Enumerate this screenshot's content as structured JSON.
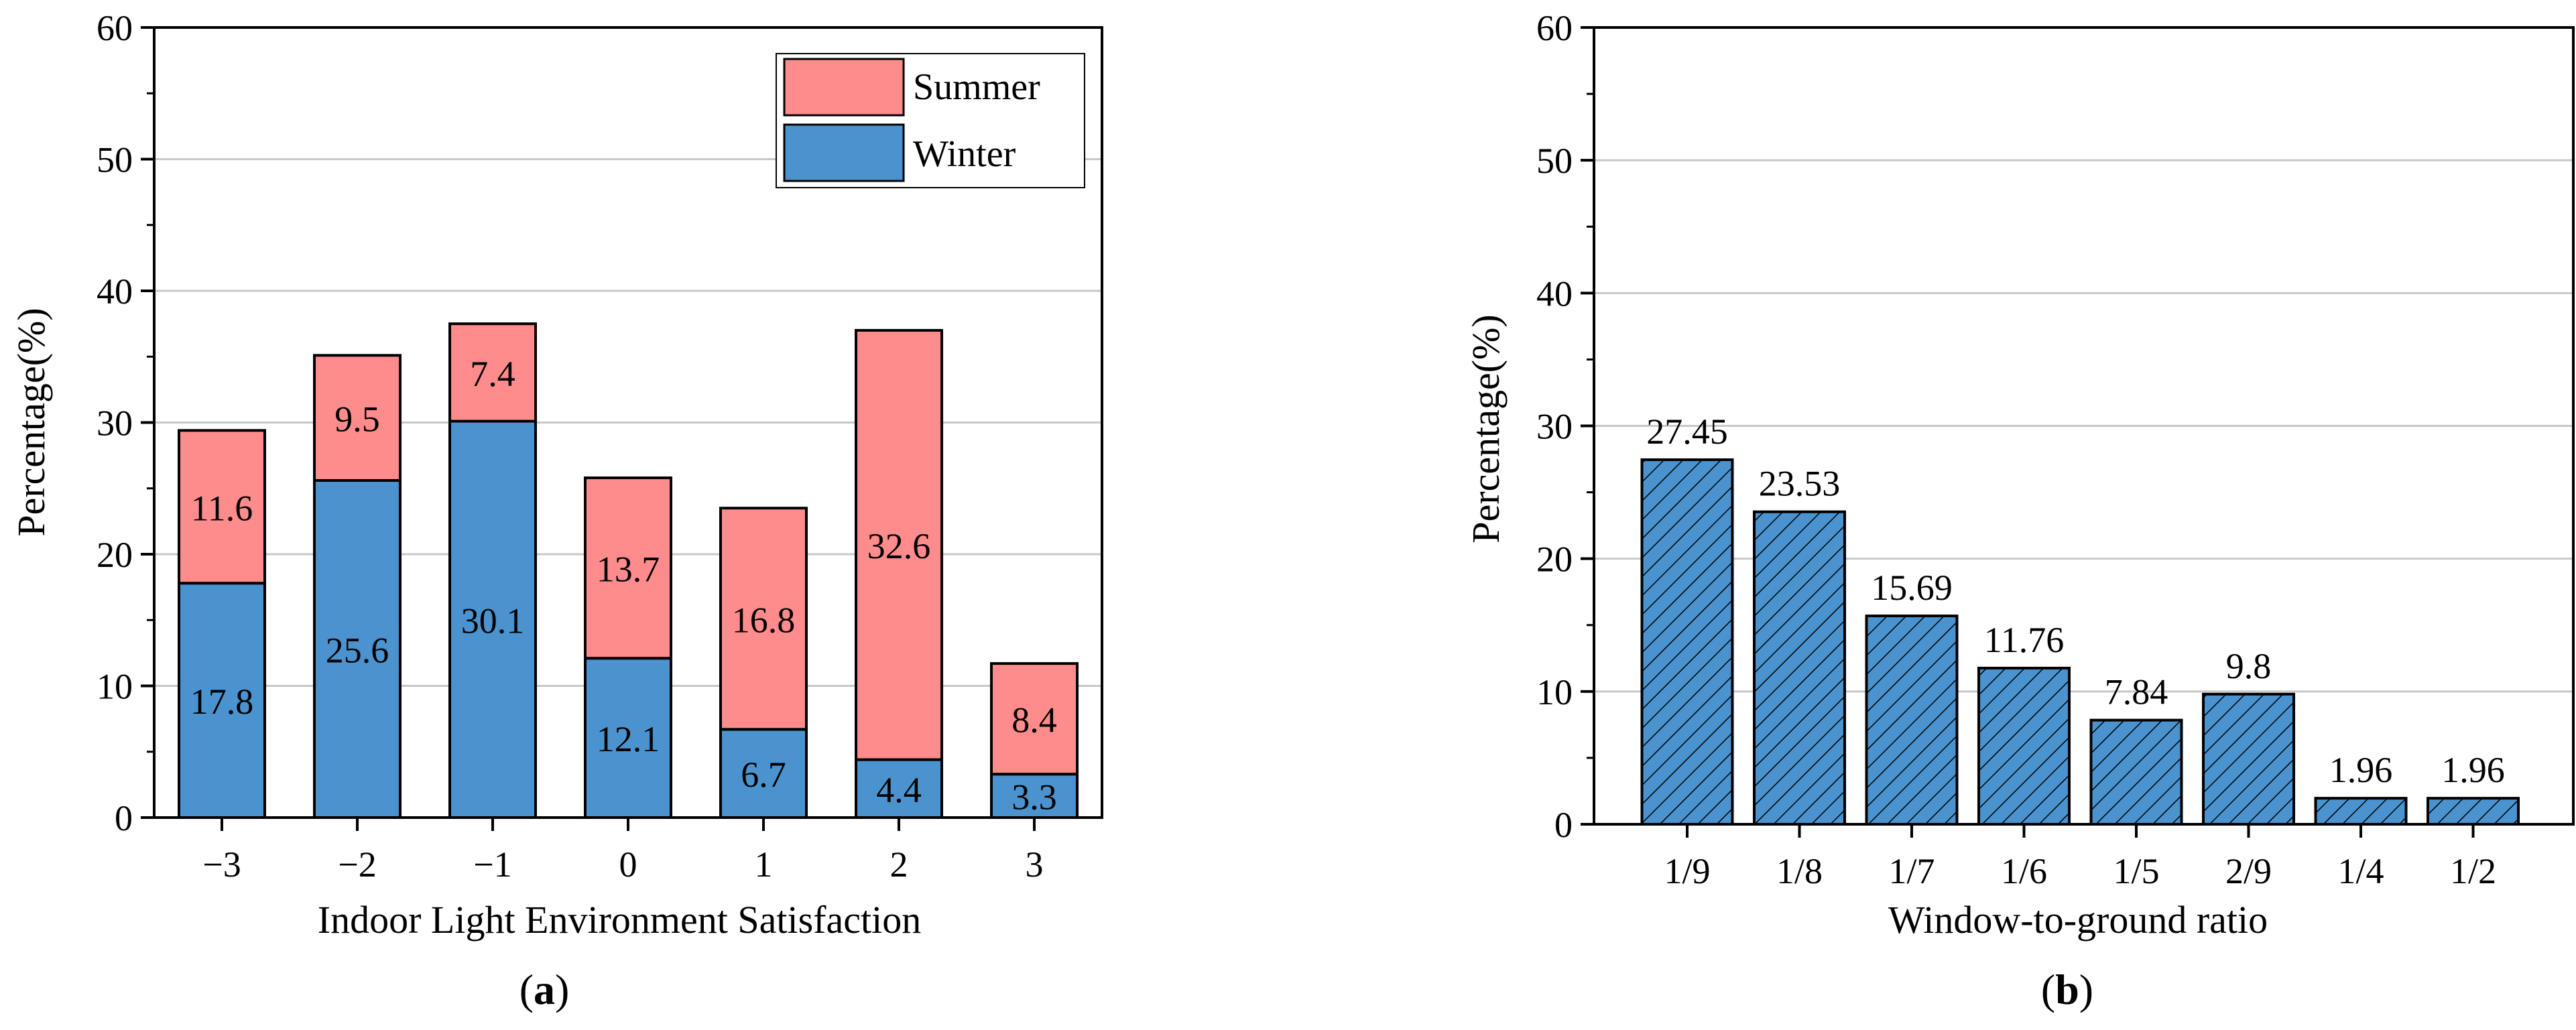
{
  "colors": {
    "summer": "#ff8c8c",
    "winter": "#4a93cf",
    "axis": "#000000",
    "grid": "#c8c8c8"
  },
  "chart_data": [
    {
      "type": "bar",
      "stacked": true,
      "panel_label": "a",
      "categories": [
        "−3",
        "−2",
        "−1",
        "0",
        "1",
        "2",
        "3"
      ],
      "series": [
        {
          "name": "Winter",
          "values": [
            17.8,
            25.6,
            30.1,
            12.1,
            6.7,
            4.4,
            3.3
          ],
          "labels": [
            "17.8",
            "25.6",
            "30.1",
            "12.1",
            "6.7",
            "4.4",
            "3.3"
          ]
        },
        {
          "name": "Summer",
          "values": [
            11.6,
            9.5,
            7.4,
            13.7,
            16.8,
            32.6,
            8.4
          ],
          "labels": [
            "11.6",
            "9.5",
            "7.4",
            "13.7",
            "16.8",
            "32.6",
            "8.4"
          ]
        }
      ],
      "legend": {
        "position": "top-right",
        "entries": [
          "Summer",
          "Winter"
        ]
      },
      "title": "",
      "xlabel": "Indoor Light Environment Satisfaction",
      "ylabel": "Percentage(%)",
      "ylim": [
        0,
        60
      ],
      "yticks": [
        "0",
        "10",
        "20",
        "30",
        "40",
        "50",
        "60"
      ],
      "grid": true
    },
    {
      "type": "bar",
      "stacked": false,
      "hatched": true,
      "panel_label": "b",
      "categories": [
        "1/9",
        "1/8",
        "1/7",
        "1/6",
        "1/5",
        "2/9",
        "1/4",
        "1/2"
      ],
      "values": [
        27.45,
        23.53,
        15.69,
        11.76,
        7.84,
        9.8,
        1.96,
        1.96
      ],
      "labels": [
        "27.45",
        "23.53",
        "15.69",
        "11.76",
        "7.84",
        "9.8",
        "1.96",
        "1.96"
      ],
      "title": "",
      "xlabel": "Window-to-ground ratio",
      "ylabel": "Percentage(%)",
      "ylim": [
        0,
        60
      ],
      "yticks": [
        "0",
        "10",
        "20",
        "30",
        "40",
        "50",
        "60"
      ],
      "grid": true
    }
  ]
}
